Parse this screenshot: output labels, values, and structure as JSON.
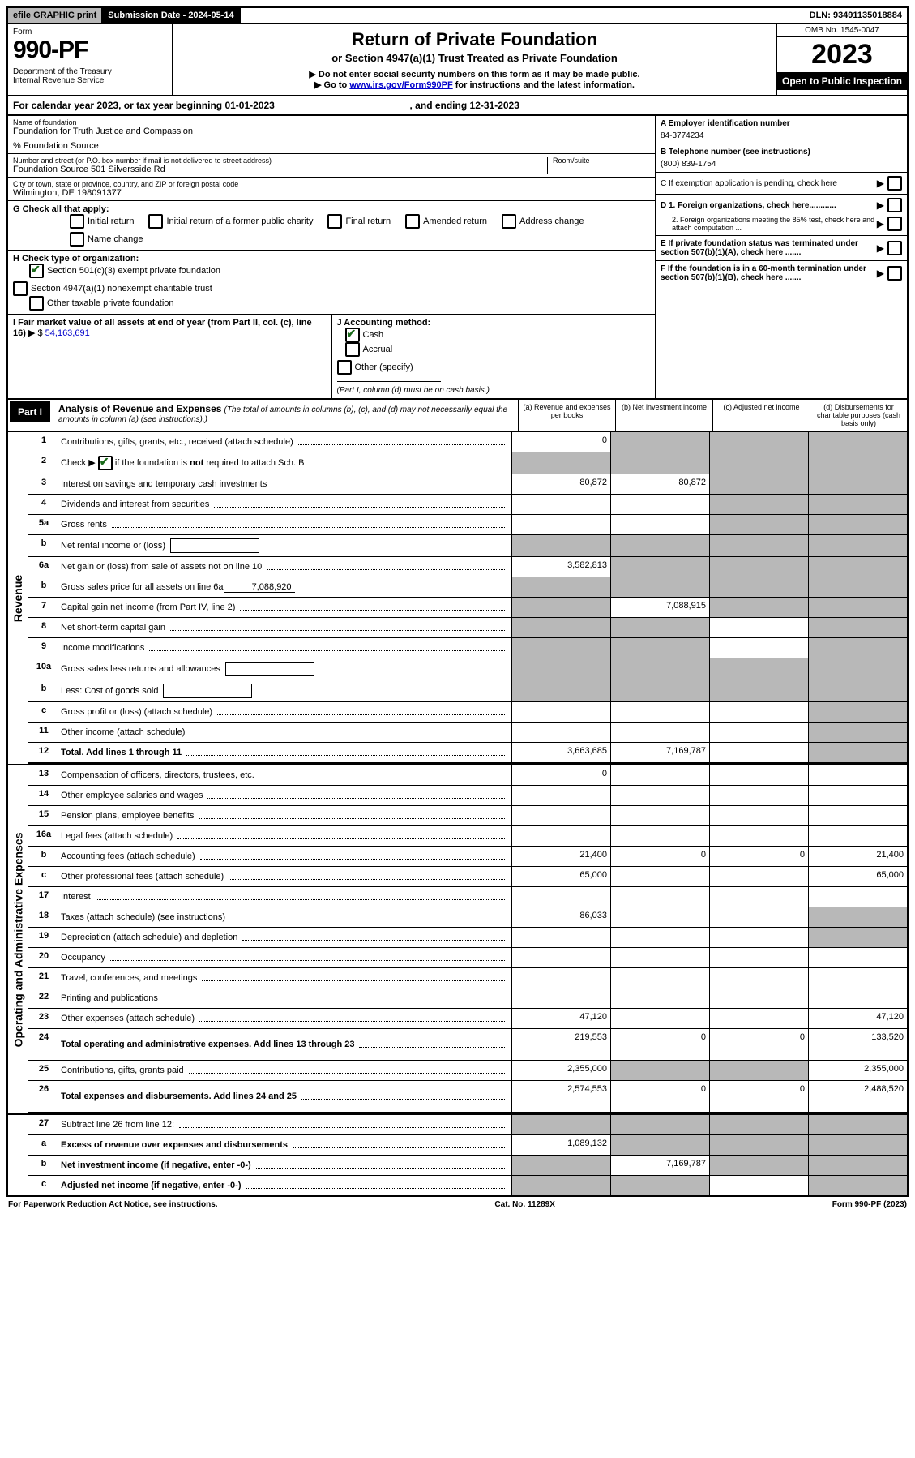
{
  "top": {
    "efile": "efile GRAPHIC print",
    "submission_label": "Submission Date - 2024-05-14",
    "dln": "DLN: 93491135018884"
  },
  "header": {
    "form_label": "Form",
    "form_num": "990-PF",
    "dept": "Department of the Treasury\nInternal Revenue Service",
    "title": "Return of Private Foundation",
    "subtitle": "or Section 4947(a)(1) Trust Treated as Private Foundation",
    "note1": "▶ Do not enter social security numbers on this form as it may be made public.",
    "note2_pre": "▶ Go to ",
    "note2_link": "www.irs.gov/Form990PF",
    "note2_post": " for instructions and the latest information.",
    "omb": "OMB No. 1545-0047",
    "year": "2023",
    "inspection": "Open to Public Inspection"
  },
  "cal": {
    "text_a": "For calendar year 2023, or tax year beginning 01-01-2023",
    "text_b": ", and ending 12-31-2023"
  },
  "entity": {
    "name_label": "Name of foundation",
    "name": "Foundation for Truth Justice and Compassion",
    "care_of": "% Foundation Source",
    "addr_label": "Number and street (or P.O. box number if mail is not delivered to street address)",
    "addr": "Foundation Source 501 Silversside Rd",
    "room_label": "Room/suite",
    "city_label": "City or town, state or province, country, and ZIP or foreign postal code",
    "city": "Wilmington, DE  198091377"
  },
  "right": {
    "a_label": "A Employer identification number",
    "a_val": "84-3774234",
    "b_label": "B Telephone number (see instructions)",
    "b_val": "(800) 839-1754",
    "c_label": "C If exemption application is pending, check here",
    "d1": "D 1. Foreign organizations, check here............",
    "d2": "2. Foreign organizations meeting the 85% test, check here and attach computation ...",
    "e": "E  If private foundation status was terminated under section 507(b)(1)(A), check here .......",
    "f": "F  If the foundation is in a 60-month termination under section 507(b)(1)(B), check here ......."
  },
  "g": {
    "label": "G Check all that apply:",
    "initial": "Initial return",
    "initial_former": "Initial return of a former public charity",
    "final": "Final return",
    "amended": "Amended return",
    "addr_change": "Address change",
    "name_change": "Name change"
  },
  "h": {
    "label": "H Check type of organization:",
    "opt1": "Section 501(c)(3) exempt private foundation",
    "opt2": "Section 4947(a)(1) nonexempt charitable trust",
    "opt3": "Other taxable private foundation"
  },
  "i": {
    "label": "I Fair market value of all assets at end of year (from Part II, col. (c), line 16)",
    "val": "54,163,691"
  },
  "j": {
    "label": "J Accounting method:",
    "cash": "Cash",
    "accrual": "Accrual",
    "other": "Other (specify)",
    "note": "(Part I, column (d) must be on cash basis.)"
  },
  "part1": {
    "label": "Part I",
    "title": "Analysis of Revenue and Expenses",
    "note": "(The total of amounts in columns (b), (c), and (d) may not necessarily equal the amounts in column (a) (see instructions).)",
    "col_a": "(a)  Revenue and expenses per books",
    "col_b": "(b)  Net investment income",
    "col_c": "(c)  Adjusted net income",
    "col_d": "(d)  Disbursements for charitable purposes (cash basis only)"
  },
  "sections": {
    "revenue": "Revenue",
    "expenses": "Operating and Administrative Expenses"
  },
  "rows": {
    "r1": {
      "n": "1",
      "d": "Contributions, gifts, grants, etc., received (attach schedule)",
      "a": "0"
    },
    "r2": {
      "n": "2",
      "d": "Check ▶ ☑ if the foundation is not required to attach Sch. B"
    },
    "r3": {
      "n": "3",
      "d": "Interest on savings and temporary cash investments",
      "a": "80,872",
      "b": "80,872"
    },
    "r4": {
      "n": "4",
      "d": "Dividends and interest from securities"
    },
    "r5a": {
      "n": "5a",
      "d": "Gross rents"
    },
    "r5b": {
      "n": "b",
      "d": "Net rental income or (loss)"
    },
    "r6a": {
      "n": "6a",
      "d": "Net gain or (loss) from sale of assets not on line 10",
      "a": "3,582,813"
    },
    "r6b": {
      "n": "b",
      "d": "Gross sales price for all assets on line 6a",
      "inline": "7,088,920"
    },
    "r7": {
      "n": "7",
      "d": "Capital gain net income (from Part IV, line 2)",
      "b": "7,088,915"
    },
    "r8": {
      "n": "8",
      "d": "Net short-term capital gain"
    },
    "r9": {
      "n": "9",
      "d": "Income modifications"
    },
    "r10a": {
      "n": "10a",
      "d": "Gross sales less returns and allowances"
    },
    "r10b": {
      "n": "b",
      "d": "Less: Cost of goods sold"
    },
    "r10c": {
      "n": "c",
      "d": "Gross profit or (loss) (attach schedule)"
    },
    "r11": {
      "n": "11",
      "d": "Other income (attach schedule)"
    },
    "r12": {
      "n": "12",
      "d": "Total. Add lines 1 through 11",
      "a": "3,663,685",
      "b": "7,169,787"
    },
    "r13": {
      "n": "13",
      "d": "Compensation of officers, directors, trustees, etc.",
      "a": "0"
    },
    "r14": {
      "n": "14",
      "d": "Other employee salaries and wages"
    },
    "r15": {
      "n": "15",
      "d": "Pension plans, employee benefits"
    },
    "r16a": {
      "n": "16a",
      "d": "Legal fees (attach schedule)"
    },
    "r16b": {
      "n": "b",
      "d": "Accounting fees (attach schedule)",
      "a": "21,400",
      "b": "0",
      "c": "0",
      "dd": "21,400"
    },
    "r16c": {
      "n": "c",
      "d": "Other professional fees (attach schedule)",
      "a": "65,000",
      "dd": "65,000"
    },
    "r17": {
      "n": "17",
      "d": "Interest"
    },
    "r18": {
      "n": "18",
      "d": "Taxes (attach schedule) (see instructions)",
      "a": "86,033"
    },
    "r19": {
      "n": "19",
      "d": "Depreciation (attach schedule) and depletion"
    },
    "r20": {
      "n": "20",
      "d": "Occupancy"
    },
    "r21": {
      "n": "21",
      "d": "Travel, conferences, and meetings"
    },
    "r22": {
      "n": "22",
      "d": "Printing and publications"
    },
    "r23": {
      "n": "23",
      "d": "Other expenses (attach schedule)",
      "a": "47,120",
      "dd": "47,120"
    },
    "r24": {
      "n": "24",
      "d": "Total operating and administrative expenses. Add lines 13 through 23",
      "a": "219,553",
      "b": "0",
      "c": "0",
      "dd": "133,520"
    },
    "r25": {
      "n": "25",
      "d": "Contributions, gifts, grants paid",
      "a": "2,355,000",
      "dd": "2,355,000"
    },
    "r26": {
      "n": "26",
      "d": "Total expenses and disbursements. Add lines 24 and 25",
      "a": "2,574,553",
      "b": "0",
      "c": "0",
      "dd": "2,488,520"
    },
    "r27": {
      "n": "27",
      "d": "Subtract line 26 from line 12:"
    },
    "r27a": {
      "n": "a",
      "d": "Excess of revenue over expenses and disbursements",
      "a": "1,089,132"
    },
    "r27b": {
      "n": "b",
      "d": "Net investment income (if negative, enter -0-)",
      "b": "7,169,787"
    },
    "r27c": {
      "n": "c",
      "d": "Adjusted net income (if negative, enter -0-)"
    }
  },
  "footer": {
    "left": "For Paperwork Reduction Act Notice, see instructions.",
    "mid": "Cat. No. 11289X",
    "right": "Form 990-PF (2023)"
  }
}
